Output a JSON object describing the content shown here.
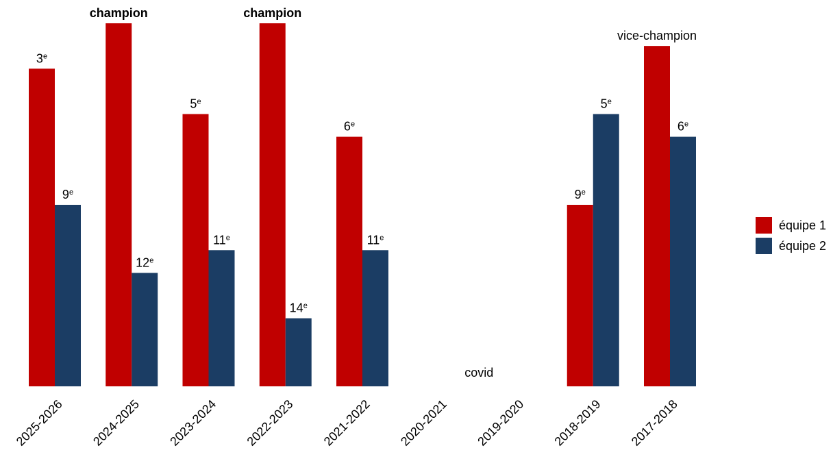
{
  "colors": {
    "series_1": "#c00000",
    "series_2": "#1b3d64"
  },
  "chart_data": {
    "type": "bar",
    "title": "",
    "xlabel": "",
    "ylabel": "",
    "grid": false,
    "legend_position": "right",
    "y_axis_visible": false,
    "rank_note": "y value = 17 - rank (champion = 1st, vice-champion = 2nd)",
    "categories": [
      "2025-2026",
      "2024-2025",
      "2023-2024",
      "2022-2023",
      "2021-2022",
      "2020-2021",
      "2019-2020",
      "2018-2019",
      "2017-2018"
    ],
    "series": [
      {
        "name": "équipe 1",
        "values": [
          14,
          16,
          12,
          16,
          11,
          null,
          null,
          8,
          15
        ],
        "labels": [
          {
            "num": "3",
            "sup": "e",
            "bold": false
          },
          {
            "num": "champion",
            "sup": "",
            "bold": true
          },
          {
            "num": "5",
            "sup": "e",
            "bold": false
          },
          {
            "num": "champion",
            "sup": "",
            "bold": true
          },
          {
            "num": "6",
            "sup": "e",
            "bold": false
          },
          null,
          null,
          {
            "num": "9",
            "sup": "e",
            "bold": false
          },
          {
            "num": "vice-champion",
            "sup": "",
            "bold": false
          }
        ]
      },
      {
        "name": "équipe 2",
        "values": [
          8,
          5,
          6,
          3,
          6,
          null,
          null,
          12,
          11
        ],
        "labels": [
          {
            "num": "9",
            "sup": "e",
            "bold": false
          },
          {
            "num": "12",
            "sup": "e",
            "bold": false
          },
          {
            "num": "11",
            "sup": "e",
            "bold": false
          },
          {
            "num": "14",
            "sup": "e",
            "bold": false
          },
          {
            "num": "11",
            "sup": "e",
            "bold": false
          },
          null,
          null,
          {
            "num": "5",
            "sup": "e",
            "bold": false
          },
          {
            "num": "6",
            "sup": "e",
            "bold": false
          }
        ]
      }
    ],
    "annotations": [
      {
        "text": "covid",
        "category": "2020-2021"
      }
    ]
  }
}
